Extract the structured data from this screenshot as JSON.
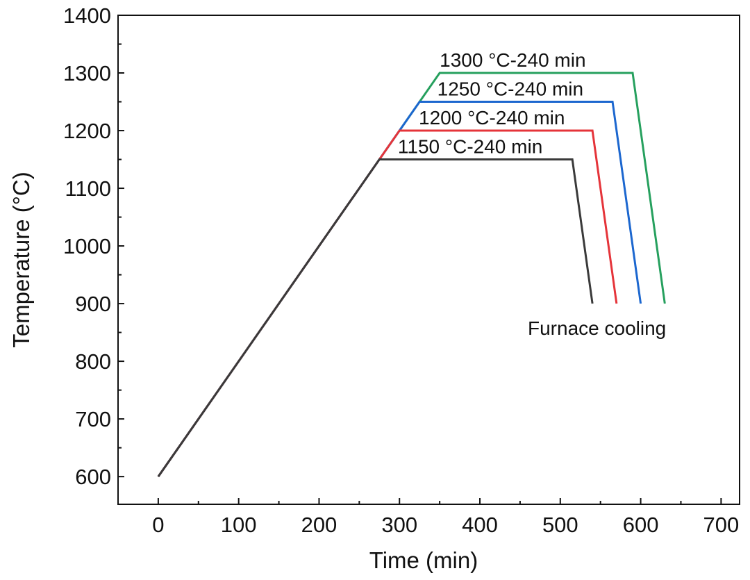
{
  "chart_data": {
    "type": "line",
    "title": "",
    "xlabel": "Time (min)",
    "ylabel": "Temperature (°C)",
    "xlim": [
      -50,
      723
    ],
    "ylim": [
      552,
      1400
    ],
    "xticks": [
      0,
      100,
      200,
      300,
      400,
      500,
      600,
      700
    ],
    "yticks": [
      600,
      700,
      800,
      900,
      1000,
      1100,
      1200,
      1300,
      1400
    ],
    "grid": false,
    "series": [
      {
        "name": "1150 °C-240 min",
        "label": "1150 °C-240 min",
        "color": "#3a3a3a",
        "x": [
          0,
          275,
          515,
          540
        ],
        "y": [
          600,
          1150,
          1150,
          900
        ]
      },
      {
        "name": "1200 °C-240 min",
        "label": "1200 °C-240 min",
        "color": "#e5343a",
        "x": [
          0,
          300,
          540,
          570
        ],
        "y": [
          600,
          1200,
          1200,
          900
        ]
      },
      {
        "name": "1250 °C-240 min",
        "label": "1250 °C-240 min",
        "color": "#1c67cf",
        "x": [
          0,
          325,
          565,
          600
        ],
        "y": [
          600,
          1250,
          1250,
          900
        ]
      },
      {
        "name": "1300 °C-240 min",
        "label": "1300 °C-240 min",
        "color": "#26a05e",
        "x": [
          0,
          350,
          590,
          630
        ],
        "y": [
          600,
          1300,
          1300,
          900
        ]
      }
    ],
    "annotations": [
      "Furnace cooling"
    ]
  }
}
